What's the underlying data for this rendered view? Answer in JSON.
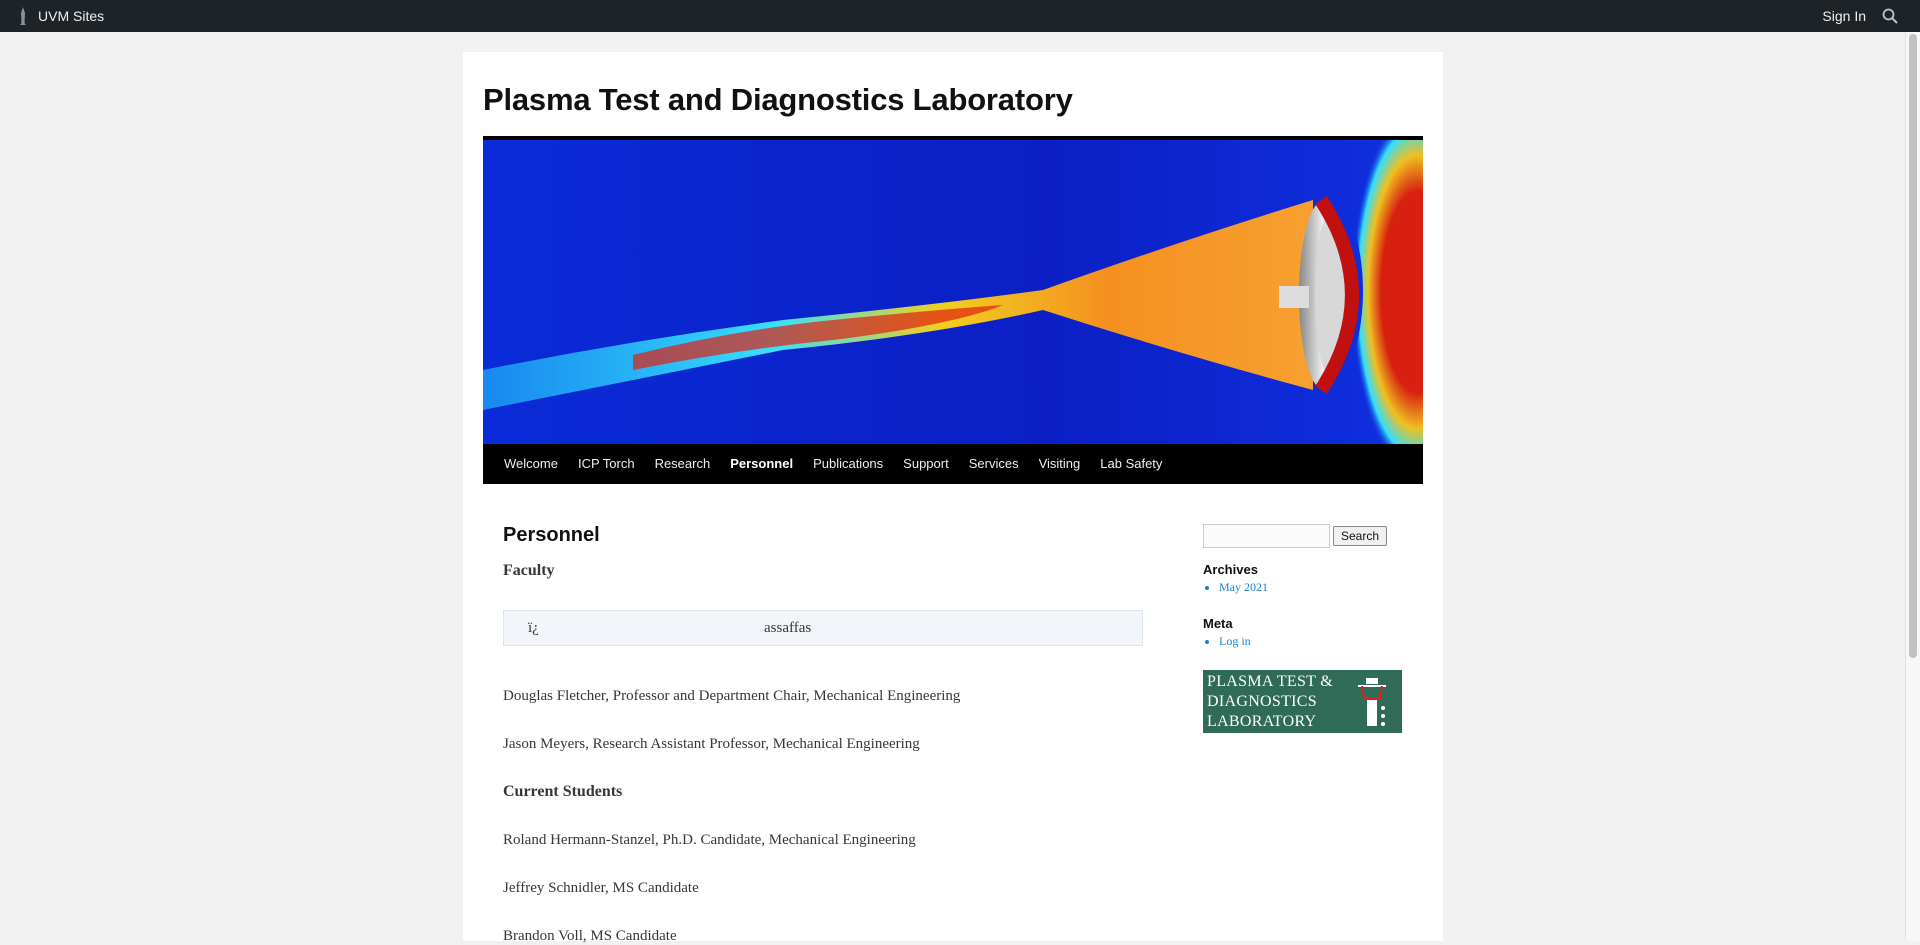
{
  "adminbar": {
    "sites_label": "UVM Sites",
    "signin_label": "Sign In"
  },
  "site": {
    "title": "Plasma Test and Diagnostics Laboratory"
  },
  "nav": {
    "items": [
      {
        "label": "Welcome",
        "active": false
      },
      {
        "label": "ICP Torch",
        "active": false
      },
      {
        "label": "Research",
        "active": false
      },
      {
        "label": "Personnel",
        "active": true
      },
      {
        "label": "Publications",
        "active": false
      },
      {
        "label": "Support",
        "active": false
      },
      {
        "label": "Services",
        "active": false
      },
      {
        "label": "Visiting",
        "active": false
      },
      {
        "label": "Lab Safety",
        "active": false
      }
    ]
  },
  "entry": {
    "title": "Personnel",
    "faculty_heading": "Faculty",
    "table": {
      "cell1": "ï¿",
      "cell2": "assaffas"
    },
    "faculty": [
      "Douglas Fletcher, Professor and Department Chair, Mechanical Engineering",
      "Jason Meyers, Research Assistant Professor, Mechanical Engineering"
    ],
    "students_heading": "Current Students",
    "students": [
      "Roland Hermann-Stanzel, Ph.D. Candidate, Mechanical Engineering",
      "Jeffrey Schnidler, MS Candidate",
      "Brandon Voll, MS Candidate"
    ]
  },
  "sidebar": {
    "search_placeholder": "",
    "search_button": "Search",
    "archives_title": "Archives",
    "archives": [
      "May 2021"
    ],
    "meta_title": "Meta",
    "meta": [
      "Log in"
    ],
    "logo_lines": [
      "PLASMA TEST &",
      "DIAGNOSTICS",
      "LABORATORY"
    ]
  },
  "colors": {
    "adminbar_bg": "#1d2327",
    "nav_bg": "#000000",
    "link": "#1982d1",
    "logo_bg": "#2f6b56"
  }
}
